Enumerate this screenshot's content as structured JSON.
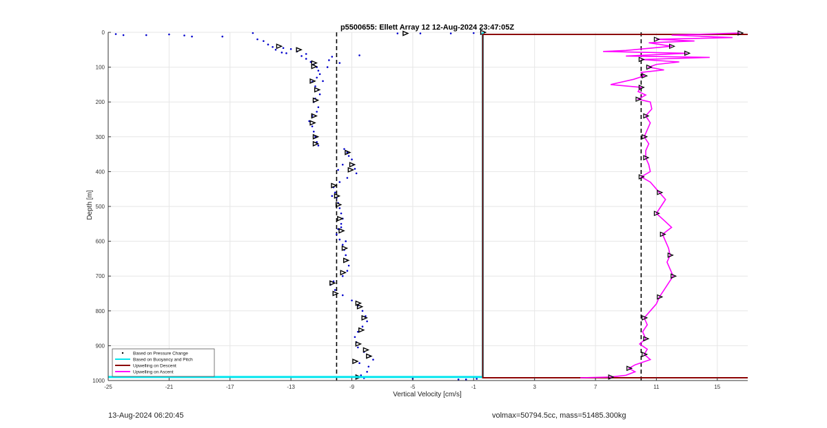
{
  "chart_data": {
    "type": "scatter",
    "title": "p5500655: Ellett Array 12 12-Aug-2024 23:47:05Z",
    "xlabel": "Vertical Velocity [cm/s]",
    "ylabel": "Depth [m]",
    "xlim": [
      -25,
      17
    ],
    "ylim": [
      0,
      1000
    ],
    "y_reversed": true,
    "grid": true,
    "xticks": [
      -25,
      -21,
      -17,
      -13,
      -9,
      -5,
      -1,
      3,
      7,
      11,
      15
    ],
    "yticks": [
      0,
      100,
      200,
      300,
      400,
      500,
      600,
      700,
      800,
      900,
      1000
    ],
    "reference_lines": [
      {
        "style": "dashed",
        "color": "#000000",
        "x": -10.0
      },
      {
        "style": "dashed",
        "color": "#000000",
        "x": 10.0
      }
    ],
    "legend": {
      "placement": "bottom-left",
      "entries": [
        {
          "label": "Based on Pressure Change",
          "color": "#000000",
          "marker": "dot"
        },
        {
          "label": "Based on Buoyancy and Pitch",
          "color": "#00e5ee",
          "marker": "line"
        },
        {
          "label": "Upwelling on Descent",
          "color": "#8b0000",
          "marker": "line"
        },
        {
          "label": "Upwelling on Ascent",
          "color": "#ff00ff",
          "marker": "line"
        }
      ]
    },
    "series": [
      {
        "marker_color": "#0000cc",
        "style": "points",
        "points": [
          [
            -24.5,
            5
          ],
          [
            -24,
            8
          ],
          [
            -22.5,
            8
          ],
          [
            -21,
            6
          ],
          [
            -20,
            9
          ],
          [
            -19.5,
            12
          ],
          [
            -17.5,
            12
          ],
          [
            -15.5,
            2
          ],
          [
            -15.2,
            20
          ],
          [
            -14.8,
            25
          ],
          [
            -14.5,
            35
          ],
          [
            -14.2,
            42
          ],
          [
            -14,
            50
          ],
          [
            -13.6,
            58
          ],
          [
            -13.3,
            60
          ],
          [
            -13,
            48
          ],
          [
            -12.6,
            55
          ],
          [
            -12.3,
            68
          ],
          [
            -12,
            76
          ],
          [
            -11.7,
            85
          ],
          [
            -11.5,
            92
          ],
          [
            -11.3,
            100
          ],
          [
            -11.2,
            110
          ],
          [
            -11.1,
            120
          ],
          [
            -11.3,
            130
          ],
          [
            -11.6,
            142
          ],
          [
            -11.4,
            155
          ],
          [
            -11.2,
            165
          ],
          [
            -11.1,
            178
          ],
          [
            -11.4,
            190
          ],
          [
            -11.5,
            200
          ],
          [
            -11.2,
            215
          ],
          [
            -11.3,
            228
          ],
          [
            -11.6,
            240
          ],
          [
            -11.8,
            255
          ],
          [
            -11.6,
            270
          ],
          [
            -11.5,
            285
          ],
          [
            -11.4,
            300
          ],
          [
            -11.3,
            315
          ],
          [
            -11.2,
            325
          ],
          [
            -9.5,
            335
          ],
          [
            -9.3,
            345
          ],
          [
            -9.2,
            355
          ],
          [
            -9.0,
            365
          ],
          [
            -8.9,
            380
          ],
          [
            -8.8,
            392
          ],
          [
            -8.7,
            405
          ],
          [
            -9.3,
            418
          ],
          [
            -9.8,
            430
          ],
          [
            -10.2,
            445
          ],
          [
            -10.1,
            460
          ],
          [
            -10.0,
            475
          ],
          [
            -9.9,
            490
          ],
          [
            -9.8,
            505
          ],
          [
            -9.7,
            520
          ],
          [
            -9.6,
            535
          ],
          [
            -9.7,
            550
          ],
          [
            -9.9,
            565
          ],
          [
            -10.0,
            580
          ],
          [
            -9.8,
            595
          ],
          [
            -9.6,
            610
          ],
          [
            -9.5,
            625
          ],
          [
            -9.4,
            640
          ],
          [
            -9.3,
            655
          ],
          [
            -9.2,
            670
          ],
          [
            -9.3,
            685
          ],
          [
            -9.6,
            700
          ],
          [
            -10.2,
            715
          ],
          [
            -10.4,
            725
          ],
          [
            -10.1,
            740
          ],
          [
            -9.6,
            755
          ],
          [
            -9.0,
            770
          ],
          [
            -8.6,
            785
          ],
          [
            -8.3,
            800
          ],
          [
            -8.1,
            815
          ],
          [
            -8.0,
            830
          ],
          [
            -8.3,
            845
          ],
          [
            -8.6,
            860
          ],
          [
            -8.8,
            875
          ],
          [
            -8.7,
            890
          ],
          [
            -8.6,
            905
          ],
          [
            -8.2,
            918
          ],
          [
            -7.8,
            930
          ],
          [
            -7.6,
            940
          ],
          [
            -8.5,
            950
          ],
          [
            -7.9,
            960
          ],
          [
            -8.0,
            975
          ],
          [
            -8.4,
            985
          ],
          [
            -8.2,
            993
          ],
          [
            -5.0,
            995
          ],
          [
            -2.0,
            997
          ],
          [
            -1.5,
            997
          ],
          [
            -0.8,
            995
          ],
          [
            -1.0,
            2
          ],
          [
            -2.5,
            3
          ],
          [
            -4.5,
            3
          ],
          [
            -6.0,
            3
          ],
          [
            -8.5,
            66
          ],
          [
            -10.3,
            70
          ],
          [
            -9.8,
            88
          ],
          [
            -10.5,
            80
          ],
          [
            -12.0,
            62
          ],
          [
            -13.5,
            45
          ],
          [
            -10.6,
            100
          ],
          [
            -10.9,
            140
          ],
          [
            -9.6,
            380
          ],
          [
            -9.9,
            395
          ],
          [
            -10.3,
            470
          ],
          [
            -9.7,
            560
          ],
          [
            -9.4,
            600
          ]
        ]
      },
      {
        "marker_color": "#000000",
        "marker": "triangle",
        "style": "points",
        "points": [
          [
            -13.8,
            40
          ],
          [
            -12.5,
            50
          ],
          [
            -11.5,
            88
          ],
          [
            -11.5,
            98
          ],
          [
            -11.6,
            140
          ],
          [
            -11.3,
            165
          ],
          [
            -11.4,
            195
          ],
          [
            -11.5,
            240
          ],
          [
            -11.6,
            260
          ],
          [
            -11.4,
            300
          ],
          [
            -11.4,
            320
          ],
          [
            -9.3,
            345
          ],
          [
            -9.0,
            380
          ],
          [
            -9.1,
            395
          ],
          [
            -10.2,
            440
          ],
          [
            -10.0,
            470
          ],
          [
            -9.9,
            495
          ],
          [
            -9.8,
            535
          ],
          [
            -9.7,
            570
          ],
          [
            -9.5,
            620
          ],
          [
            -9.4,
            655
          ],
          [
            -9.6,
            690
          ],
          [
            -10.3,
            720
          ],
          [
            -10.1,
            750
          ],
          [
            -8.6,
            778
          ],
          [
            -8.5,
            788
          ],
          [
            -8.2,
            820
          ],
          [
            -8.4,
            855
          ],
          [
            -8.6,
            895
          ],
          [
            -8.1,
            912
          ],
          [
            -7.9,
            930
          ],
          [
            -8.8,
            945
          ],
          [
            -8.6,
            990
          ],
          [
            -5.5,
            3
          ],
          [
            -0.4,
            0
          ]
        ]
      },
      {
        "name": "Based on Buoyancy and Pitch",
        "color": "#00e5ee",
        "style": "line",
        "points": [
          [
            -0.4,
            0
          ],
          [
            -0.4,
            990
          ],
          [
            -25,
            990
          ]
        ]
      },
      {
        "name": "Upwelling on Descent",
        "color": "#8b0000",
        "style": "line",
        "points": [
          [
            -0.4,
            6
          ],
          [
            17,
            6
          ],
          [
            -0.4,
            6
          ],
          [
            -0.4,
            992
          ],
          [
            17,
            992
          ]
        ]
      },
      {
        "name": "Upwelling on Ascent",
        "color": "#ff00ff",
        "style": "line",
        "points": [
          [
            16.5,
            2
          ],
          [
            12,
            8
          ],
          [
            16,
            15
          ],
          [
            11,
            20
          ],
          [
            13.5,
            25
          ],
          [
            10.5,
            30
          ],
          [
            12,
            40
          ],
          [
            9,
            52
          ],
          [
            7.5,
            55
          ],
          [
            13,
            60
          ],
          [
            9,
            68
          ],
          [
            14.5,
            72
          ],
          [
            10,
            78
          ],
          [
            12.5,
            85
          ],
          [
            11,
            92
          ],
          [
            10.5,
            100
          ],
          [
            11.5,
            108
          ],
          [
            10,
            115
          ],
          [
            10.2,
            125
          ],
          [
            9.5,
            135
          ],
          [
            8,
            150
          ],
          [
            10,
            158
          ],
          [
            9.8,
            170
          ],
          [
            10.3,
            180
          ],
          [
            9.8,
            192
          ],
          [
            10.6,
            200
          ],
          [
            10.7,
            220
          ],
          [
            10.3,
            240
          ],
          [
            10.6,
            260
          ],
          [
            10.4,
            280
          ],
          [
            10.2,
            300
          ],
          [
            10.5,
            320
          ],
          [
            10.3,
            340
          ],
          [
            10.3,
            360
          ],
          [
            10.5,
            380
          ],
          [
            10.6,
            400
          ],
          [
            10.0,
            415
          ],
          [
            10.6,
            430
          ],
          [
            10.9,
            445
          ],
          [
            11.2,
            460
          ],
          [
            11.6,
            480
          ],
          [
            11.3,
            500
          ],
          [
            11.0,
            520
          ],
          [
            11.5,
            540
          ],
          [
            12.0,
            560
          ],
          [
            11.4,
            580
          ],
          [
            11.6,
            600
          ],
          [
            11.8,
            620
          ],
          [
            11.9,
            640
          ],
          [
            11.7,
            660
          ],
          [
            11.9,
            680
          ],
          [
            12.1,
            700
          ],
          [
            11.8,
            720
          ],
          [
            11.5,
            740
          ],
          [
            11.2,
            760
          ],
          [
            11.0,
            780
          ],
          [
            10.6,
            800
          ],
          [
            10.2,
            820
          ],
          [
            10.4,
            840
          ],
          [
            10.1,
            860
          ],
          [
            10.3,
            880
          ],
          [
            9.9,
            895
          ],
          [
            10.4,
            910
          ],
          [
            10.2,
            925
          ],
          [
            10.6,
            940
          ],
          [
            9.6,
            955
          ],
          [
            9.2,
            965
          ],
          [
            9.6,
            975
          ],
          [
            9.0,
            985
          ],
          [
            8.0,
            990
          ],
          [
            6.0,
            992
          ]
        ]
      }
    ]
  },
  "footer": {
    "timestamp": "13-Aug-2024 06:20:45",
    "params": "volmax=50794.5cc, mass=51485.300kg"
  }
}
